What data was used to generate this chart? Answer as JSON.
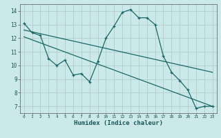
{
  "title": "",
  "xlabel": "Humidex (Indice chaleur)",
  "ylabel": "",
  "background_color": "#cbe9e9",
  "grid_color": "#b0cccc",
  "line_color": "#1a6666",
  "x_ticks": [
    0,
    1,
    2,
    3,
    4,
    5,
    6,
    7,
    8,
    9,
    10,
    11,
    12,
    13,
    14,
    15,
    16,
    17,
    18,
    19,
    20,
    21,
    22,
    23
  ],
  "y_ticks": [
    7,
    8,
    9,
    10,
    11,
    12,
    13,
    14
  ],
  "xlim": [
    -0.5,
    23.5
  ],
  "ylim": [
    6.5,
    14.5
  ],
  "series1_x": [
    0,
    1,
    2,
    3,
    4,
    5,
    6,
    7,
    8,
    9,
    10,
    11,
    12,
    13,
    14,
    15,
    16,
    17,
    18,
    19,
    20,
    21,
    22,
    23
  ],
  "series1_y": [
    13.1,
    12.4,
    12.2,
    10.5,
    10.0,
    10.4,
    9.3,
    9.4,
    8.8,
    10.3,
    12.0,
    12.9,
    13.9,
    14.1,
    13.5,
    13.5,
    13.0,
    10.7,
    9.5,
    8.9,
    8.2,
    6.85,
    7.0,
    7.0
  ],
  "series2_x": [
    0,
    23
  ],
  "series2_y": [
    12.6,
    9.5
  ],
  "series3_x": [
    0,
    23
  ],
  "series3_y": [
    12.1,
    7.0
  ]
}
